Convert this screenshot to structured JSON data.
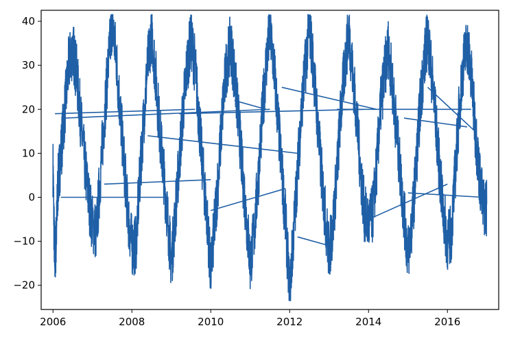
{
  "chart_data": {
    "type": "line",
    "title": "",
    "xlabel": "",
    "ylabel": "",
    "xlim": [
      2005.7,
      2017.3
    ],
    "ylim": [
      -25.5,
      42.5
    ],
    "x_ticks": [
      {
        "value": 2006,
        "label": "2006"
      },
      {
        "value": 2008,
        "label": "2008"
      },
      {
        "value": 2010,
        "label": "2010"
      },
      {
        "value": 2012,
        "label": "2012"
      },
      {
        "value": 2014,
        "label": "2014"
      },
      {
        "value": 2016,
        "label": "2016"
      }
    ],
    "y_ticks": [
      {
        "value": -20,
        "label": "−20"
      },
      {
        "value": -10,
        "label": "−10"
      },
      {
        "value": 0,
        "label": "0"
      },
      {
        "value": 10,
        "label": "10"
      },
      {
        "value": 20,
        "label": "20"
      },
      {
        "value": 30,
        "label": "30"
      },
      {
        "value": 40,
        "label": "40"
      }
    ],
    "grid": false,
    "series_color": "#1f5fa6",
    "series": [
      {
        "description": "daily temperature-like series with annual cycle (unsorted timestamps cause connecting lines)",
        "x": [
          2006.0,
          2006.04,
          2006.08,
          2006.12,
          2006.2,
          2006.3,
          2006.4,
          2006.5,
          2006.6,
          2006.7,
          2006.8,
          2006.9,
          2007.0,
          2007.1,
          2007.2,
          2007.3,
          2007.4,
          2007.5,
          2007.6,
          2007.7,
          2007.8,
          2007.9,
          2008.0,
          2008.1,
          2008.2,
          2008.3,
          2008.4,
          2008.5,
          2008.6,
          2008.7,
          2008.8,
          2008.9,
          2009.0,
          2009.1,
          2009.2,
          2009.3,
          2009.4,
          2009.5,
          2009.6,
          2009.7,
          2009.8,
          2009.9,
          2010.0,
          2010.1,
          2010.2,
          2010.3,
          2010.4,
          2010.5,
          2010.6,
          2010.7,
          2010.8,
          2010.9,
          2011.0,
          2011.1,
          2011.2,
          2011.3,
          2011.4,
          2011.5,
          2011.6,
          2011.7,
          2011.8,
          2011.9,
          2012.0,
          2012.1,
          2012.2,
          2012.3,
          2012.4,
          2012.5,
          2012.6,
          2012.7,
          2012.8,
          2012.9,
          2013.0,
          2013.1,
          2013.2,
          2013.3,
          2013.4,
          2013.5,
          2013.6,
          2013.7,
          2013.8,
          2013.9,
          2014.0,
          2014.1,
          2014.2,
          2014.3,
          2014.4,
          2014.5,
          2014.6,
          2014.7,
          2014.8,
          2014.9,
          2015.0,
          2015.1,
          2015.2,
          2015.3,
          2015.4,
          2015.5,
          2015.6,
          2015.7,
          2015.8,
          2015.9,
          2016.0,
          2016.1,
          2016.2,
          2016.3,
          2016.4,
          2016.5,
          2016.6,
          2016.7,
          2016.8,
          2016.9,
          2017.0
        ],
        "y": [
          7,
          -14,
          -10,
          2,
          10,
          20,
          30,
          34,
          28,
          18,
          8,
          0,
          -6,
          -8,
          5,
          18,
          30,
          40,
          32,
          20,
          8,
          -4,
          -11,
          -11,
          4,
          18,
          30,
          38,
          28,
          16,
          6,
          -4,
          -15,
          -4,
          8,
          20,
          30,
          36,
          30,
          18,
          6,
          -4,
          -17,
          -6,
          6,
          20,
          30,
          35,
          28,
          18,
          6,
          -4,
          -15,
          -8,
          4,
          18,
          30,
          38,
          30,
          18,
          6,
          -6,
          -22,
          -8,
          6,
          20,
          30,
          39,
          30,
          18,
          6,
          -4,
          -13,
          -6,
          6,
          20,
          30,
          38,
          28,
          18,
          6,
          -4,
          -6,
          -4,
          6,
          20,
          28,
          34,
          26,
          16,
          6,
          -4,
          -13,
          -6,
          6,
          20,
          30,
          37,
          28,
          18,
          6,
          -4,
          -10,
          -8,
          6,
          20,
          30,
          35,
          28,
          16,
          6,
          -2,
          -2
        ]
      }
    ]
  }
}
